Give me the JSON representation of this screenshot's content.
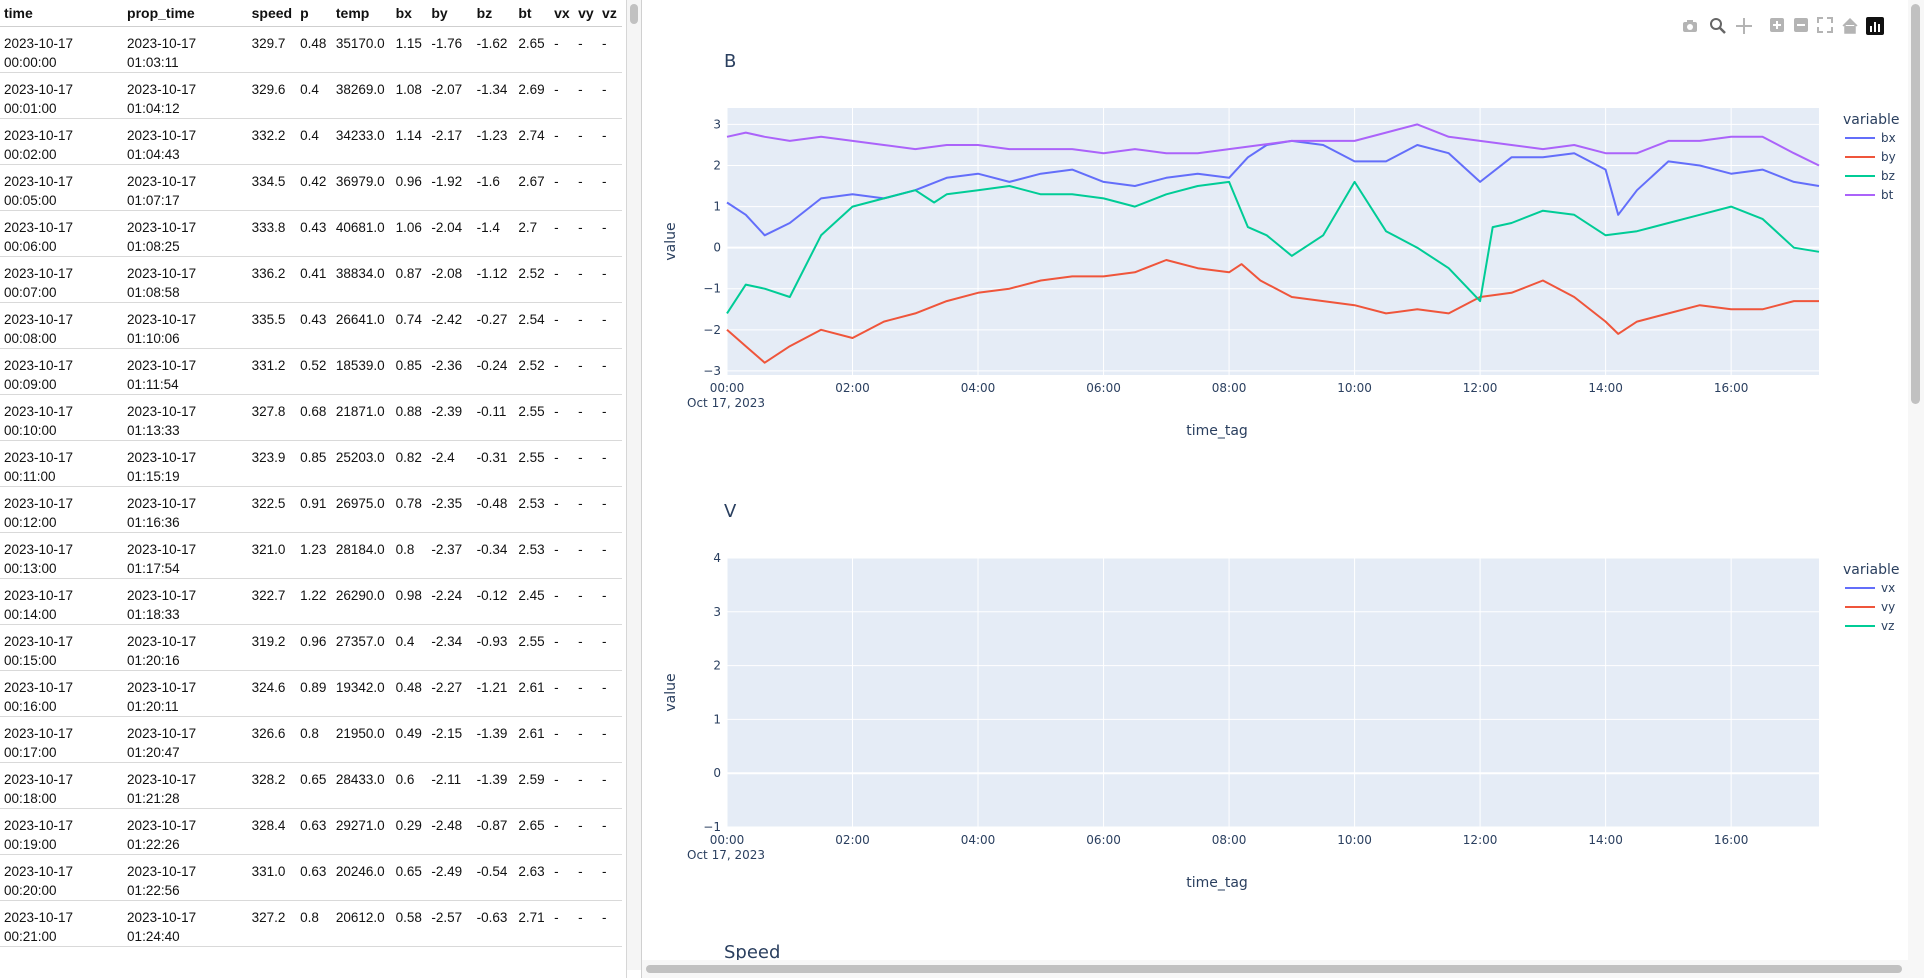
{
  "table": {
    "columns": [
      "time",
      "prop_time",
      "speed",
      "p",
      "temp",
      "bx",
      "by",
      "bz",
      "bt",
      "vx",
      "vy",
      "vz"
    ],
    "rows": [
      [
        "2023-10-17 00:00:00",
        "2023-10-17 01:03:11",
        "329.7",
        "0.48",
        "35170.0",
        "1.15",
        "-1.76",
        "-1.62",
        "2.65",
        "-",
        "-",
        "-"
      ],
      [
        "2023-10-17 00:01:00",
        "2023-10-17 01:04:12",
        "329.6",
        "0.4",
        "38269.0",
        "1.08",
        "-2.07",
        "-1.34",
        "2.69",
        "-",
        "-",
        "-"
      ],
      [
        "2023-10-17 00:02:00",
        "2023-10-17 01:04:43",
        "332.2",
        "0.4",
        "34233.0",
        "1.14",
        "-2.17",
        "-1.23",
        "2.74",
        "-",
        "-",
        "-"
      ],
      [
        "2023-10-17 00:05:00",
        "2023-10-17 01:07:17",
        "334.5",
        "0.42",
        "36979.0",
        "0.96",
        "-1.92",
        "-1.6",
        "2.67",
        "-",
        "-",
        "-"
      ],
      [
        "2023-10-17 00:06:00",
        "2023-10-17 01:08:25",
        "333.8",
        "0.43",
        "40681.0",
        "1.06",
        "-2.04",
        "-1.4",
        "2.7",
        "-",
        "-",
        "-"
      ],
      [
        "2023-10-17 00:07:00",
        "2023-10-17 01:08:58",
        "336.2",
        "0.41",
        "38834.0",
        "0.87",
        "-2.08",
        "-1.12",
        "2.52",
        "-",
        "-",
        "-"
      ],
      [
        "2023-10-17 00:08:00",
        "2023-10-17 01:10:06",
        "335.5",
        "0.43",
        "26641.0",
        "0.74",
        "-2.42",
        "-0.27",
        "2.54",
        "-",
        "-",
        "-"
      ],
      [
        "2023-10-17 00:09:00",
        "2023-10-17 01:11:54",
        "331.2",
        "0.52",
        "18539.0",
        "0.85",
        "-2.36",
        "-0.24",
        "2.52",
        "-",
        "-",
        "-"
      ],
      [
        "2023-10-17 00:10:00",
        "2023-10-17 01:13:33",
        "327.8",
        "0.68",
        "21871.0",
        "0.88",
        "-2.39",
        "-0.11",
        "2.55",
        "-",
        "-",
        "-"
      ],
      [
        "2023-10-17 00:11:00",
        "2023-10-17 01:15:19",
        "323.9",
        "0.85",
        "25203.0",
        "0.82",
        "-2.4",
        "-0.31",
        "2.55",
        "-",
        "-",
        "-"
      ],
      [
        "2023-10-17 00:12:00",
        "2023-10-17 01:16:36",
        "322.5",
        "0.91",
        "26975.0",
        "0.78",
        "-2.35",
        "-0.48",
        "2.53",
        "-",
        "-",
        "-"
      ],
      [
        "2023-10-17 00:13:00",
        "2023-10-17 01:17:54",
        "321.0",
        "1.23",
        "28184.0",
        "0.8",
        "-2.37",
        "-0.34",
        "2.53",
        "-",
        "-",
        "-"
      ],
      [
        "2023-10-17 00:14:00",
        "2023-10-17 01:18:33",
        "322.7",
        "1.22",
        "26290.0",
        "0.98",
        "-2.24",
        "-0.12",
        "2.45",
        "-",
        "-",
        "-"
      ],
      [
        "2023-10-17 00:15:00",
        "2023-10-17 01:20:16",
        "319.2",
        "0.96",
        "27357.0",
        "0.4",
        "-2.34",
        "-0.93",
        "2.55",
        "-",
        "-",
        "-"
      ],
      [
        "2023-10-17 00:16:00",
        "2023-10-17 01:20:11",
        "324.6",
        "0.89",
        "19342.0",
        "0.48",
        "-2.27",
        "-1.21",
        "2.61",
        "-",
        "-",
        "-"
      ],
      [
        "2023-10-17 00:17:00",
        "2023-10-17 01:20:47",
        "326.6",
        "0.8",
        "21950.0",
        "0.49",
        "-2.15",
        "-1.39",
        "2.61",
        "-",
        "-",
        "-"
      ],
      [
        "2023-10-17 00:18:00",
        "2023-10-17 01:21:28",
        "328.2",
        "0.65",
        "28433.0",
        "0.6",
        "-2.11",
        "-1.39",
        "2.59",
        "-",
        "-",
        "-"
      ],
      [
        "2023-10-17 00:19:00",
        "2023-10-17 01:22:26",
        "328.4",
        "0.63",
        "29271.0",
        "0.29",
        "-2.48",
        "-0.87",
        "2.65",
        "-",
        "-",
        "-"
      ],
      [
        "2023-10-17 00:20:00",
        "2023-10-17 01:22:56",
        "331.0",
        "0.63",
        "20246.0",
        "0.65",
        "-2.49",
        "-0.54",
        "2.63",
        "-",
        "-",
        "-"
      ],
      [
        "2023-10-17 00:21:00",
        "2023-10-17 01:24:40",
        "327.2",
        "0.8",
        "20612.0",
        "0.58",
        "-2.57",
        "-0.63",
        "2.71",
        "-",
        "-",
        "-"
      ]
    ]
  },
  "modebar": {
    "icons": [
      "camera-icon",
      "zoom-icon",
      "pan-icon",
      "zoom-in-icon",
      "zoom-out-icon",
      "autoscale-icon",
      "reset-axes-icon",
      "plotly-logo-icon"
    ]
  },
  "colors": {
    "bx": "#636efa",
    "by": "#ef553b",
    "bz": "#00cc96",
    "bt": "#ab63fa",
    "plot_bg": "#e5ecf6",
    "grid": "#ffffff",
    "axis_text": "#2a3f5f"
  },
  "chart_data": [
    {
      "type": "line",
      "title": "B",
      "xlabel": "time_tag",
      "ylabel": "value",
      "x_ticks": [
        "00:00",
        "02:00",
        "04:00",
        "06:00",
        "08:00",
        "10:00",
        "12:00",
        "14:00",
        "16:00"
      ],
      "x_subtitle": "Oct 17, 2023",
      "x_range_hours": [
        0,
        17.4
      ],
      "y_ticks": [
        "3",
        "2",
        "1",
        "0",
        "−1",
        "−2",
        "−3"
      ],
      "ylim": [
        -3.1,
        3.4
      ],
      "grid": true,
      "legend_title": "variable",
      "legend_position": "top-right",
      "series": [
        {
          "name": "bx",
          "x": [
            0,
            0.3,
            0.6,
            1.0,
            1.5,
            2.0,
            2.5,
            3.0,
            3.5,
            4.0,
            4.5,
            5.0,
            5.5,
            6.0,
            6.5,
            7.0,
            7.5,
            8.0,
            8.3,
            8.6,
            9.0,
            9.5,
            10.0,
            10.5,
            11.0,
            11.5,
            12.0,
            12.5,
            13.0,
            13.5,
            14.0,
            14.2,
            14.5,
            15.0,
            15.5,
            16.0,
            16.5,
            17.0,
            17.4
          ],
          "values": [
            1.1,
            0.8,
            0.3,
            0.6,
            1.2,
            1.3,
            1.2,
            1.4,
            1.7,
            1.8,
            1.6,
            1.8,
            1.9,
            1.6,
            1.5,
            1.7,
            1.8,
            1.7,
            2.2,
            2.5,
            2.6,
            2.5,
            2.1,
            2.1,
            2.5,
            2.3,
            1.6,
            2.2,
            2.2,
            2.3,
            1.9,
            0.8,
            1.4,
            2.1,
            2.0,
            1.8,
            1.9,
            1.6,
            1.5
          ]
        },
        {
          "name": "by",
          "x": [
            0,
            0.3,
            0.6,
            1.0,
            1.5,
            2.0,
            2.5,
            3.0,
            3.5,
            4.0,
            4.5,
            5.0,
            5.5,
            6.0,
            6.5,
            7.0,
            7.5,
            8.0,
            8.2,
            8.5,
            9.0,
            9.5,
            10.0,
            10.5,
            11.0,
            11.5,
            12.0,
            12.5,
            13.0,
            13.5,
            14.0,
            14.2,
            14.5,
            15.0,
            15.5,
            16.0,
            16.5,
            17.0,
            17.4
          ],
          "values": [
            -2.0,
            -2.4,
            -2.8,
            -2.4,
            -2.0,
            -2.2,
            -1.8,
            -1.6,
            -1.3,
            -1.1,
            -1.0,
            -0.8,
            -0.7,
            -0.7,
            -0.6,
            -0.3,
            -0.5,
            -0.6,
            -0.4,
            -0.8,
            -1.2,
            -1.3,
            -1.4,
            -1.6,
            -1.5,
            -1.6,
            -1.2,
            -1.1,
            -0.8,
            -1.2,
            -1.8,
            -2.1,
            -1.8,
            -1.6,
            -1.4,
            -1.5,
            -1.5,
            -1.3,
            -1.3
          ]
        },
        {
          "name": "bz",
          "x": [
            0,
            0.3,
            0.6,
            1.0,
            1.5,
            2.0,
            2.5,
            3.0,
            3.3,
            3.5,
            4.0,
            4.5,
            5.0,
            5.5,
            6.0,
            6.5,
            7.0,
            7.5,
            8.0,
            8.3,
            8.6,
            9.0,
            9.5,
            10.0,
            10.5,
            11.0,
            11.5,
            12.0,
            12.2,
            12.5,
            13.0,
            13.5,
            14.0,
            14.5,
            15.0,
            15.5,
            16.0,
            16.5,
            17.0,
            17.4
          ],
          "values": [
            -1.6,
            -0.9,
            -1.0,
            -1.2,
            0.3,
            1.0,
            1.2,
            1.4,
            1.1,
            1.3,
            1.4,
            1.5,
            1.3,
            1.3,
            1.2,
            1.0,
            1.3,
            1.5,
            1.6,
            0.5,
            0.3,
            -0.2,
            0.3,
            1.6,
            0.4,
            0.0,
            -0.5,
            -1.3,
            0.5,
            0.6,
            0.9,
            0.8,
            0.3,
            0.4,
            0.6,
            0.8,
            1.0,
            0.7,
            0.0,
            -0.1
          ]
        },
        {
          "name": "bt",
          "x": [
            0,
            0.3,
            0.6,
            1.0,
            1.5,
            2.0,
            2.5,
            3.0,
            3.5,
            4.0,
            4.5,
            5.0,
            5.5,
            6.0,
            6.5,
            7.0,
            7.5,
            8.0,
            8.5,
            9.0,
            9.5,
            10.0,
            10.5,
            11.0,
            11.5,
            12.0,
            12.5,
            13.0,
            13.5,
            14.0,
            14.5,
            15.0,
            15.5,
            16.0,
            16.5,
            17.0,
            17.4
          ],
          "values": [
            2.7,
            2.8,
            2.7,
            2.6,
            2.7,
            2.6,
            2.5,
            2.4,
            2.5,
            2.5,
            2.4,
            2.4,
            2.4,
            2.3,
            2.4,
            2.3,
            2.3,
            2.4,
            2.5,
            2.6,
            2.6,
            2.6,
            2.8,
            3.0,
            2.7,
            2.6,
            2.5,
            2.4,
            2.5,
            2.3,
            2.3,
            2.6,
            2.6,
            2.7,
            2.7,
            2.3,
            2.0
          ]
        }
      ]
    },
    {
      "type": "line",
      "title": "V",
      "xlabel": "time_tag",
      "ylabel": "value",
      "x_ticks": [
        "00:00",
        "02:00",
        "04:00",
        "06:00",
        "08:00",
        "10:00",
        "12:00",
        "14:00",
        "16:00"
      ],
      "x_subtitle": "Oct 17, 2023",
      "x_range_hours": [
        0,
        17.4
      ],
      "y_ticks": [
        "4",
        "3",
        "2",
        "1",
        "0",
        "−1"
      ],
      "ylim": [
        -1,
        4
      ],
      "grid": true,
      "legend_title": "variable",
      "legend_position": "top-right",
      "series": [
        {
          "name": "vx",
          "values": []
        },
        {
          "name": "vy",
          "values": []
        },
        {
          "name": "vz",
          "values": []
        }
      ]
    },
    {
      "type": "line",
      "title": "Speed"
    }
  ],
  "legend_colors_v": {
    "vx": "#636efa",
    "vy": "#ef553b",
    "vz": "#00cc96"
  }
}
